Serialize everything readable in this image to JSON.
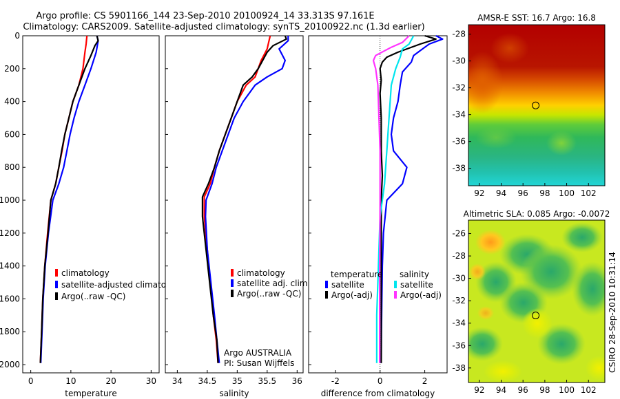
{
  "header": {
    "line1": "Argo profile: CS 5901166_144 23-Sep-2010 20100924_14 33.313S 97.161E",
    "line2": "Climatology: CARS2009. Satellite-adjusted climatology: synTS_20100922.nc (1.3d earlier)"
  },
  "side_label": "CSIRO 28-Sep-2010 10:31:14",
  "colors": {
    "climatology": "#ff0000",
    "satellite": "#0000ff",
    "argo": "#000000",
    "argo_sal": "#ff33ff",
    "satellite_sal": "#00e5ee"
  },
  "chart_data": [
    {
      "type": "line",
      "xlabel": "temperature",
      "xlim": [
        -2,
        32
      ],
      "ylim": [
        0,
        2050
      ],
      "xticks": [
        "0",
        "10",
        "20",
        "30"
      ],
      "yticks": [
        "0",
        "200",
        "400",
        "600",
        "800",
        "1000",
        "1200",
        "1400",
        "1600",
        "1800",
        "2000"
      ],
      "legend": [
        "climatology",
        "satellite-adjusted climatolog",
        "Argo(..raw -QC)"
      ],
      "legend_position": "lower-middle",
      "series": [
        {
          "name": "climatology",
          "color": "#ff0000",
          "points": [
            [
              14,
              0
            ],
            [
              13.8,
              50
            ],
            [
              13.5,
              100
            ],
            [
              13,
              200
            ],
            [
              12,
              300
            ],
            [
              10.5,
              400
            ],
            [
              9.5,
              500
            ],
            [
              8.5,
              600
            ],
            [
              7.8,
              700
            ],
            [
              7,
              800
            ],
            [
              6.2,
              900
            ],
            [
              5,
              1000
            ],
            [
              4.2,
              1200
            ],
            [
              3.5,
              1400
            ],
            [
              3,
              1600
            ],
            [
              2.7,
              1800
            ],
            [
              2.4,
              1990
            ]
          ]
        },
        {
          "name": "satellite-adjusted climatolog",
          "color": "#0000ff",
          "points": [
            [
              16.5,
              0
            ],
            [
              16.8,
              30
            ],
            [
              16.3,
              100
            ],
            [
              15,
              200
            ],
            [
              13.5,
              300
            ],
            [
              12,
              400
            ],
            [
              10.8,
              500
            ],
            [
              9.8,
              600
            ],
            [
              9,
              700
            ],
            [
              8.2,
              800
            ],
            [
              7,
              900
            ],
            [
              5.5,
              1000
            ],
            [
              4.4,
              1200
            ],
            [
              3.6,
              1400
            ],
            [
              3.1,
              1600
            ],
            [
              2.8,
              1800
            ],
            [
              2.5,
              1990
            ]
          ]
        },
        {
          "name": "Argo(..raw -QC)",
          "color": "#000000",
          "points": [
            [
              16.5,
              0
            ],
            [
              16.8,
              30
            ],
            [
              16,
              60
            ],
            [
              15,
              120
            ],
            [
              13.5,
              200
            ],
            [
              12,
              300
            ],
            [
              10.5,
              400
            ],
            [
              9.5,
              500
            ],
            [
              8.5,
              600
            ],
            [
              7.7,
              700
            ],
            [
              7,
              800
            ],
            [
              6.2,
              900
            ],
            [
              5,
              1000
            ],
            [
              4.3,
              1200
            ],
            [
              3.5,
              1400
            ],
            [
              3,
              1600
            ],
            [
              2.7,
              1800
            ],
            [
              2.4,
              1990
            ]
          ]
        }
      ]
    },
    {
      "type": "line",
      "xlabel": "salinity",
      "xlim": [
        33.8,
        36.1
      ],
      "ylim": [
        0,
        2050
      ],
      "xticks": [
        "34",
        "34.5",
        "35",
        "35.5",
        "36"
      ],
      "legend": [
        "climatology",
        "satellite adj. clim.",
        "Argo(..raw -QC)"
      ],
      "legend_position": "lower-right",
      "annotation": [
        "Argo AUSTRALIA",
        "PI: Susan Wijffels"
      ],
      "series": [
        {
          "name": "climatology",
          "color": "#ff0000",
          "points": [
            [
              35.55,
              0
            ],
            [
              35.5,
              80
            ],
            [
              35.4,
              150
            ],
            [
              35.3,
              250
            ],
            [
              35.15,
              300
            ],
            [
              35.0,
              400
            ],
            [
              34.9,
              500
            ],
            [
              34.8,
              600
            ],
            [
              34.7,
              700
            ],
            [
              34.62,
              800
            ],
            [
              34.55,
              900
            ],
            [
              34.45,
              980
            ],
            [
              34.45,
              1100
            ],
            [
              34.5,
              1300
            ],
            [
              34.55,
              1500
            ],
            [
              34.6,
              1700
            ],
            [
              34.65,
              1850
            ],
            [
              34.68,
              1990
            ]
          ]
        },
        {
          "name": "satellite adj. clim.",
          "color": "#0000ff",
          "points": [
            [
              35.85,
              0
            ],
            [
              35.85,
              30
            ],
            [
              35.7,
              80
            ],
            [
              35.8,
              150
            ],
            [
              35.75,
              200
            ],
            [
              35.5,
              250
            ],
            [
              35.3,
              300
            ],
            [
              35.1,
              400
            ],
            [
              34.95,
              500
            ],
            [
              34.85,
              600
            ],
            [
              34.75,
              700
            ],
            [
              34.65,
              800
            ],
            [
              34.58,
              900
            ],
            [
              34.48,
              1000
            ],
            [
              34.47,
              1100
            ],
            [
              34.5,
              1300
            ],
            [
              34.56,
              1500
            ],
            [
              34.62,
              1700
            ],
            [
              34.66,
              1850
            ],
            [
              34.7,
              1990
            ]
          ]
        },
        {
          "name": "Argo(..raw -QC)",
          "color": "#000000",
          "points": [
            [
              35.8,
              0
            ],
            [
              35.82,
              20
            ],
            [
              35.6,
              60
            ],
            [
              35.5,
              100
            ],
            [
              35.35,
              200
            ],
            [
              35.25,
              250
            ],
            [
              35.1,
              300
            ],
            [
              35.0,
              400
            ],
            [
              34.9,
              500
            ],
            [
              34.8,
              600
            ],
            [
              34.7,
              700
            ],
            [
              34.62,
              800
            ],
            [
              34.52,
              900
            ],
            [
              34.42,
              980
            ],
            [
              34.42,
              1100
            ],
            [
              34.48,
              1300
            ],
            [
              34.54,
              1500
            ],
            [
              34.6,
              1700
            ],
            [
              34.66,
              1850
            ],
            [
              34.68,
              1990
            ]
          ]
        }
      ]
    },
    {
      "type": "line",
      "xlabel": "difference from climatology",
      "xlim": [
        -3.2,
        3.0
      ],
      "ylim": [
        0,
        2050
      ],
      "xticks": [
        "-2",
        "0",
        "2"
      ],
      "reference_line": 0,
      "legend_groups": [
        "temperature",
        "salinity"
      ],
      "legend": {
        "temperature": [
          "satellite",
          "Argo(-adj)"
        ],
        "salinity": [
          "satellite",
          "Argo(-adj)"
        ]
      },
      "series": [
        {
          "name": "temperature satellite",
          "color": "#0000ff",
          "points": [
            [
              2.5,
              0
            ],
            [
              2.8,
              20
            ],
            [
              2.2,
              50
            ],
            [
              1.8,
              90
            ],
            [
              1.5,
              120
            ],
            [
              1.4,
              160
            ],
            [
              1.0,
              220
            ],
            [
              0.9,
              300
            ],
            [
              0.8,
              400
            ],
            [
              0.6,
              500
            ],
            [
              0.5,
              600
            ],
            [
              0.6,
              700
            ],
            [
              1.2,
              800
            ],
            [
              1.0,
              900
            ],
            [
              0.3,
              1000
            ],
            [
              0.15,
              1200
            ],
            [
              0.1,
              1400
            ],
            [
              0.08,
              1600
            ],
            [
              0.06,
              1800
            ],
            [
              0.05,
              1990
            ]
          ]
        },
        {
          "name": "temperature Argo(-adj)",
          "color": "#000000",
          "points": [
            [
              2.0,
              0
            ],
            [
              2.5,
              20
            ],
            [
              1.8,
              50
            ],
            [
              0.8,
              100
            ],
            [
              0.3,
              130
            ],
            [
              0.1,
              160
            ],
            [
              0.0,
              200
            ],
            [
              0.05,
              270
            ],
            [
              0.0,
              350
            ],
            [
              0.05,
              500
            ],
            [
              0.05,
              700
            ],
            [
              0.1,
              850
            ],
            [
              0.05,
              1000
            ],
            [
              0.05,
              1500
            ],
            [
              0.05,
              1990
            ]
          ]
        },
        {
          "name": "salinity satellite",
          "color": "#00e5ee",
          "points": [
            [
              1.5,
              0
            ],
            [
              1.3,
              50
            ],
            [
              1.0,
              80
            ],
            [
              0.9,
              130
            ],
            [
              0.7,
              200
            ],
            [
              0.5,
              300
            ],
            [
              0.4,
              500
            ],
            [
              0.3,
              700
            ],
            [
              0.2,
              900
            ],
            [
              0.1,
              1000
            ],
            [
              0.0,
              1100
            ],
            [
              -0.05,
              1300
            ],
            [
              -0.1,
              1500
            ],
            [
              -0.15,
              1700
            ],
            [
              -0.15,
              1990
            ]
          ]
        },
        {
          "name": "salinity Argo(-adj)",
          "color": "#ff33ff",
          "points": [
            [
              1.3,
              0
            ],
            [
              1.0,
              40
            ],
            [
              0.5,
              70
            ],
            [
              -0.2,
              120
            ],
            [
              -0.3,
              150
            ],
            [
              -0.2,
              200
            ],
            [
              -0.1,
              300
            ],
            [
              -0.05,
              500
            ],
            [
              0.0,
              700
            ],
            [
              0.0,
              1000
            ],
            [
              -0.02,
              1500
            ],
            [
              -0.02,
              1990
            ]
          ]
        }
      ]
    },
    {
      "type": "heatmap",
      "title": "AMSR-E SST: 16.7 Argo: 16.8",
      "xlim": [
        91,
        103.5
      ],
      "ylim": [
        -39.3,
        -27.3
      ],
      "xticks": [
        "92",
        "94",
        "96",
        "98",
        "100",
        "102"
      ],
      "yticks": [
        "-28",
        "-30",
        "-32",
        "-34",
        "-36",
        "-38"
      ],
      "marker": {
        "lon": 97.161,
        "lat": -33.313
      }
    },
    {
      "type": "heatmap",
      "title": "Altimetric SLA: 0.085 Argo: -0.0072",
      "xlim": [
        91,
        103.5
      ],
      "ylim": [
        -39.3,
        -24.8
      ],
      "xticks": [
        "92",
        "94",
        "96",
        "98",
        "100",
        "102"
      ],
      "yticks": [
        "-26",
        "-28",
        "-30",
        "-32",
        "-34",
        "-36",
        "-38"
      ],
      "marker": {
        "lon": 97.161,
        "lat": -33.313
      }
    }
  ]
}
